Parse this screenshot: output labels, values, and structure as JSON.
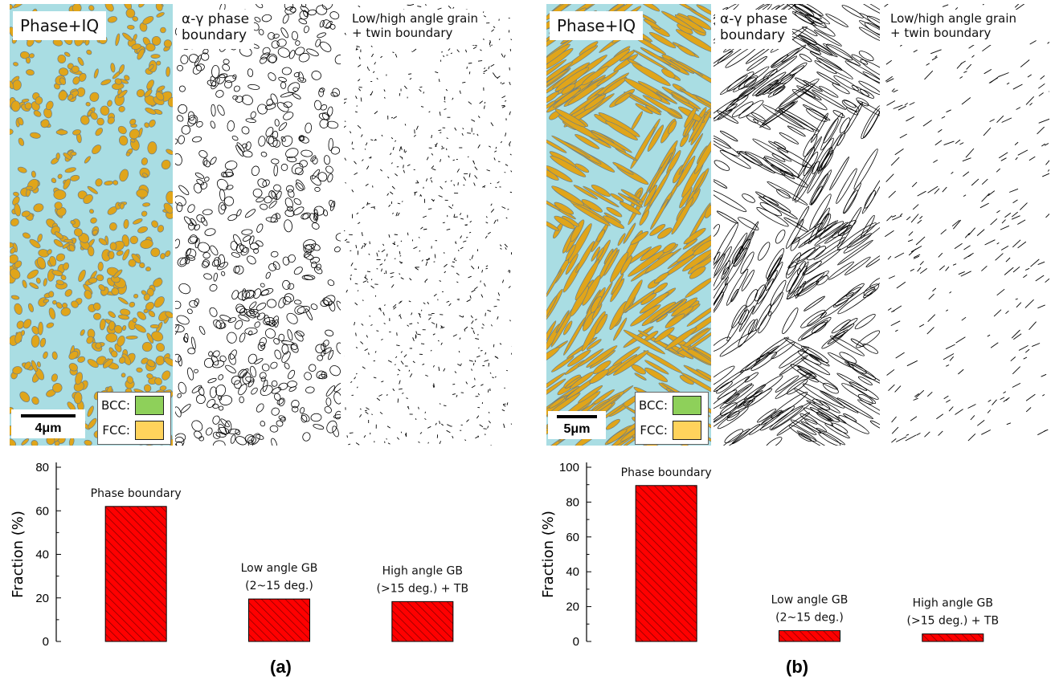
{
  "panels": [
    {
      "id": "a",
      "tile_labels": [
        "Phase+IQ",
        "α-γ phase boundary",
        "Low/high angle grain + twin boundary"
      ],
      "tile_label_lines": [
        [
          "Phase+IQ"
        ],
        [
          "α-γ phase",
          "boundary"
        ],
        [
          "Low/high angle grain",
          "+ twin boundary"
        ]
      ],
      "scale_bar": "4μm",
      "morphology": "globular",
      "panel_label": "(a)"
    },
    {
      "id": "b",
      "tile_labels": [
        "Phase+IQ",
        "α-γ phase boundary",
        "Low/high angle grain + twin boundary"
      ],
      "tile_label_lines": [
        [
          "Phase+IQ"
        ],
        [
          "α-γ phase",
          "boundary"
        ],
        [
          "Low/high angle grain",
          "+ twin boundary"
        ]
      ],
      "scale_bar": "5μm",
      "morphology": "lath",
      "panel_label": "(b)"
    }
  ],
  "legend": [
    {
      "label": "BCC:",
      "color": "#8ed05a"
    },
    {
      "label": "FCC:",
      "color": "#ffd35c"
    }
  ],
  "colors": {
    "bar_fill": "#ff0000",
    "hatch": "#7a0000",
    "phase_bcc_map": "#a9dde3",
    "phase_fcc_map": "#e0a51a"
  },
  "chart_data": [
    {
      "type": "bar",
      "categories": [
        [
          "Phase boundary"
        ],
        [
          "Low angle GB",
          "(2~15 deg.)"
        ],
        [
          "High angle GB",
          "(>15 deg.) + TB"
        ]
      ],
      "values": [
        62,
        19.5,
        18.3
      ],
      "ylabel": "Fraction (%)",
      "ylim": [
        0,
        80
      ],
      "yticks": [
        0,
        20,
        40,
        60,
        80
      ],
      "grid": false,
      "panel_label": "(a)"
    },
    {
      "type": "bar",
      "categories": [
        [
          "Phase boundary"
        ],
        [
          "Low angle GB",
          "(2~15 deg.)"
        ],
        [
          "High angle GB",
          "(>15 deg.) + TB"
        ]
      ],
      "values": [
        89.5,
        6.2,
        4.3
      ],
      "ylabel": "Fraction (%)",
      "ylim": [
        0,
        100
      ],
      "yticks": [
        0,
        20,
        40,
        60,
        80,
        100
      ],
      "grid": false,
      "panel_label": "(b)"
    }
  ]
}
